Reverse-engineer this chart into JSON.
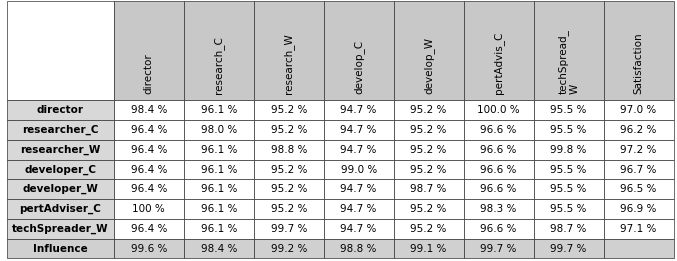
{
  "col_headers": [
    "director",
    "research_C",
    "research_W",
    "develop_C",
    "develop_W",
    "pertAdvis_C",
    "techSpread_\nW",
    "Satisfaction"
  ],
  "row_headers": [
    "director",
    "researcher_C",
    "researcher_W",
    "developer_C",
    "developer_W",
    "pertAdviser_C",
    "techSpreader_W",
    "Influence"
  ],
  "cell_data": [
    [
      "98.4 %",
      "96.1 %",
      "95.2 %",
      "94.7 %",
      "95.2 %",
      "100.0 %",
      "95.5 %",
      "97.0 %"
    ],
    [
      "96.4 %",
      "98.0 %",
      "95.2 %",
      "94.7 %",
      "95.2 %",
      "96.6 %",
      "95.5 %",
      "96.2 %"
    ],
    [
      "96.4 %",
      "96.1 %",
      "98.8 %",
      "94.7 %",
      "95.2 %",
      "96.6 %",
      "99.8 %",
      "97.2 %"
    ],
    [
      "96.4 %",
      "96.1 %",
      "95.2 %",
      "99.0 %",
      "95.2 %",
      "96.6 %",
      "95.5 %",
      "96.7 %"
    ],
    [
      "96.4 %",
      "96.1 %",
      "95.2 %",
      "94.7 %",
      "98.7 %",
      "96.6 %",
      "95.5 %",
      "96.5 %"
    ],
    [
      "100 %",
      "96.1 %",
      "95.2 %",
      "94.7 %",
      "95.2 %",
      "98.3 %",
      "95.5 %",
      "96.9 %"
    ],
    [
      "96.4 %",
      "96.1 %",
      "99.7 %",
      "94.7 %",
      "95.2 %",
      "96.6 %",
      "98.7 %",
      "97.1 %"
    ],
    [
      "99.6 %",
      "98.4 %",
      "99.2 %",
      "98.8 %",
      "99.1 %",
      "99.7 %",
      "99.7 %",
      ""
    ]
  ],
  "header_bg": "#c8c8c8",
  "row_header_bg": "#d8d8d8",
  "cell_bg_normal": "#ffffff",
  "last_row_bg": "#d0d0d0",
  "border_color": "#333333",
  "text_color": "#000000",
  "font_size": 7.5,
  "header_font_size": 7.5,
  "top_left_bg": "#ffffff"
}
